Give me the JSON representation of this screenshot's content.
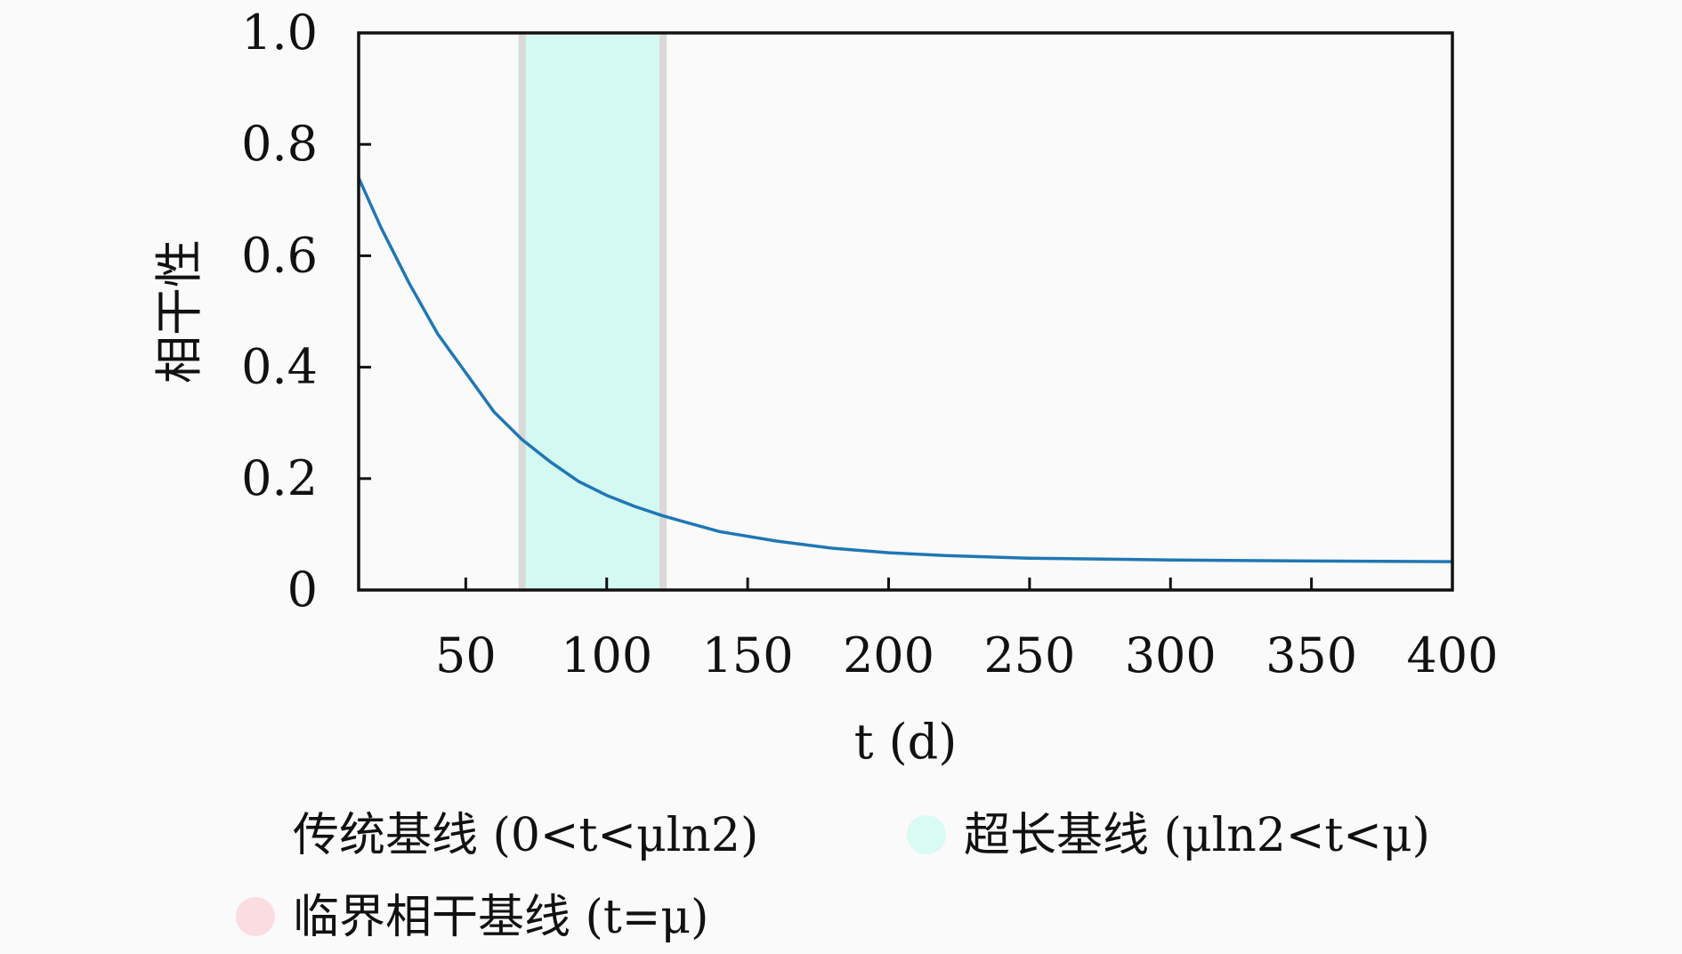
{
  "chart_data": {
    "type": "line",
    "title": "",
    "xlabel": "t (d)",
    "ylabel": "相干性",
    "xlim": [
      12,
      400
    ],
    "ylim": [
      0,
      1.0
    ],
    "x_ticks": [
      50,
      100,
      150,
      200,
      250,
      300,
      350,
      400
    ],
    "x_tick_labels": [
      "50",
      "100",
      "150",
      "200",
      "250",
      "300",
      "350",
      "400"
    ],
    "y_ticks": [
      0,
      0.2,
      0.4,
      0.6,
      0.8,
      1.0
    ],
    "y_tick_labels": [
      "0",
      "0.2",
      "0.4",
      "0.6",
      "0.8",
      "1.0"
    ],
    "grid": false,
    "legend_position": "bottom",
    "series": [
      {
        "color": "#1f77b4",
        "x": [
          12,
          20,
          30,
          40,
          50,
          60,
          70,
          80,
          90,
          100,
          110,
          120,
          140,
          160,
          180,
          200,
          220,
          250,
          300,
          350,
          400
        ],
        "y": [
          0.74,
          0.65,
          0.55,
          0.46,
          0.39,
          0.32,
          0.27,
          0.23,
          0.195,
          0.17,
          0.15,
          0.133,
          0.105,
          0.088,
          0.075,
          0.067,
          0.062,
          0.057,
          0.054,
          0.052,
          0.051
        ]
      }
    ],
    "bands": [
      {
        "x0": 70,
        "x1": 120,
        "color": "#d4f8f2"
      }
    ],
    "vlines": [
      {
        "x": 70,
        "color": "#d9d9d9"
      },
      {
        "x": 120,
        "color": "#d9d9d9"
      }
    ],
    "legend": [
      {
        "label": "传统基线 (0<t<μln2)",
        "marker_color": "#fafafa"
      },
      {
        "label": "超长基线 (μln2<t<μ)",
        "marker_color": "#d8fbf4"
      },
      {
        "label": "临界相干基线 (t=μ)",
        "marker_color": "#fbdde1"
      }
    ]
  }
}
